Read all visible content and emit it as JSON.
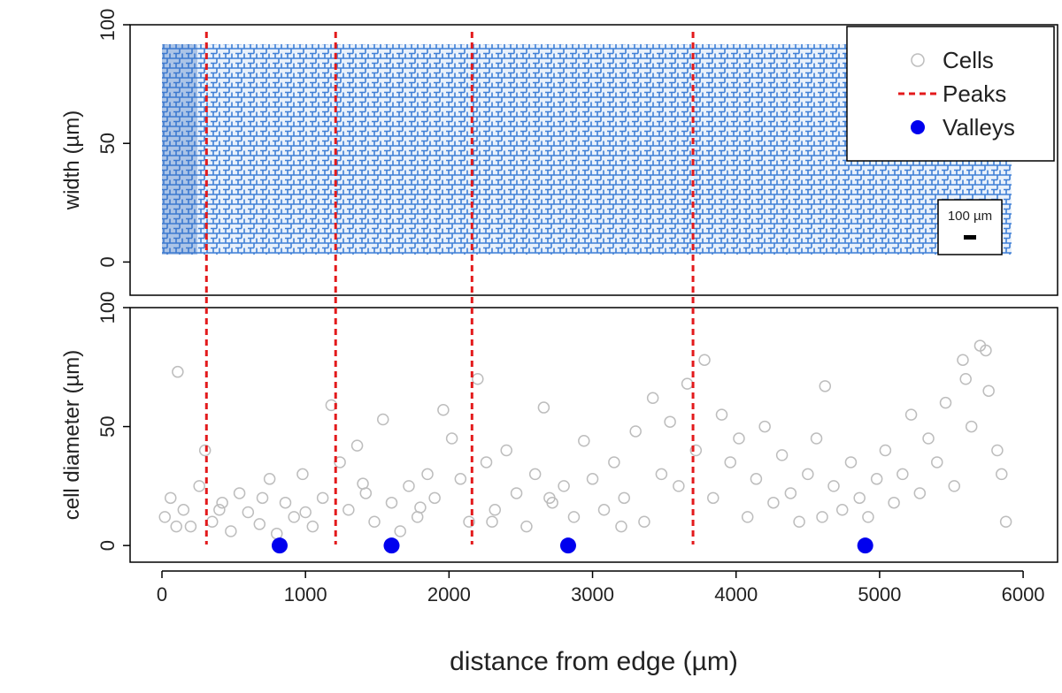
{
  "chart_data": [
    {
      "type": "image",
      "ylabel": "width (µm)",
      "ylim": [
        -14,
        100
      ],
      "yticks": [
        0,
        50,
        100
      ],
      "scale_bar_label": "100 µm",
      "legend": "top-right"
    },
    {
      "type": "scatter",
      "xlabel": "distance from edge (µm)",
      "ylabel": "cell diameter (µm)",
      "xlim": [
        -222,
        6240
      ],
      "xticks": [
        0,
        1000,
        2000,
        3000,
        4000,
        5000,
        6000
      ],
      "ylim": [
        -7,
        100
      ],
      "yticks": [
        0,
        50,
        100
      ],
      "series": [
        {
          "name": "Cells",
          "color": "#bdbdbd",
          "marker": "open-circle",
          "x": [
            20,
            60,
            110,
            150,
            200,
            260,
            300,
            350,
            420,
            480,
            540,
            600,
            680,
            750,
            800,
            860,
            920,
            980,
            1050,
            1120,
            1180,
            1240,
            1300,
            1360,
            1420,
            1480,
            1540,
            1600,
            1660,
            1720,
            1780,
            1850,
            1900,
            1960,
            2020,
            2080,
            2140,
            2200,
            2260,
            2320,
            2400,
            2470,
            2540,
            2600,
            2660,
            2720,
            2800,
            2870,
            2940,
            3000,
            3080,
            3150,
            3220,
            3300,
            3360,
            3420,
            3480,
            3540,
            3600,
            3660,
            3720,
            3780,
            3840,
            3900,
            3960,
            4020,
            4080,
            4140,
            4200,
            4260,
            4320,
            4380,
            4440,
            4500,
            4560,
            4620,
            4680,
            4740,
            4800,
            4860,
            4920,
            4980,
            5040,
            5100,
            5160,
            5220,
            5280,
            5340,
            5400,
            5460,
            5520,
            5580,
            5640,
            5700,
            5760,
            5820,
            5880,
            5600,
            5740,
            5850,
            100,
            400,
            700,
            1000,
            1400,
            1800,
            2300,
            2700,
            3200,
            4600
          ],
          "values": [
            12,
            20,
            73,
            15,
            8,
            25,
            40,
            10,
            18,
            6,
            22,
            14,
            9,
            28,
            5,
            18,
            12,
            30,
            8,
            20,
            59,
            35,
            15,
            42,
            22,
            10,
            53,
            18,
            6,
            25,
            12,
            30,
            20,
            57,
            45,
            28,
            10,
            70,
            35,
            15,
            40,
            22,
            8,
            30,
            58,
            18,
            25,
            12,
            44,
            28,
            15,
            35,
            20,
            48,
            10,
            62,
            30,
            52,
            25,
            68,
            40,
            78,
            20,
            55,
            35,
            45,
            12,
            28,
            50,
            18,
            38,
            22,
            10,
            30,
            45,
            67,
            25,
            15,
            35,
            20,
            12,
            28,
            40,
            18,
            30,
            55,
            22,
            45,
            35,
            60,
            25,
            78,
            50,
            84,
            65,
            40,
            10,
            70,
            82,
            30,
            8,
            15,
            20,
            14,
            26,
            16,
            10,
            20,
            8,
            12
          ]
        },
        {
          "name": "Peaks",
          "color": "#e31a1c",
          "marker": "dashed-vline",
          "x": [
            310,
            1210,
            2160,
            3700
          ]
        },
        {
          "name": "Valleys",
          "color": "#0000ee",
          "marker": "dot",
          "x": [
            820,
            1600,
            2830,
            4900
          ],
          "values": [
            0,
            0,
            0,
            0
          ]
        }
      ]
    }
  ]
}
